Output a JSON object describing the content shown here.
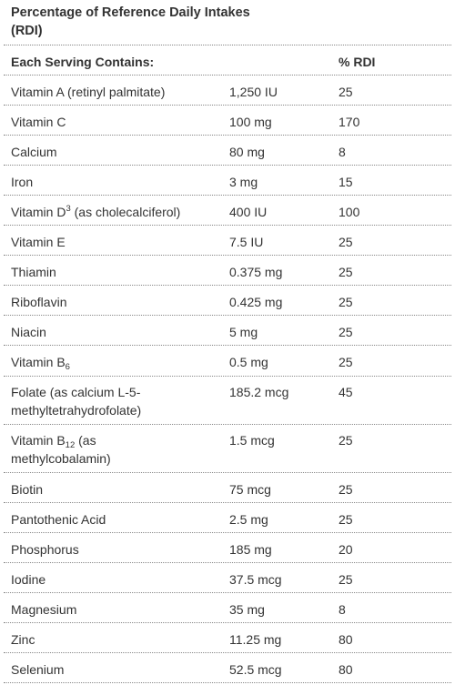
{
  "title": "Percentage of Reference Daily Intakes (RDI)",
  "header": {
    "nutrient": "Each Serving Contains:",
    "amount": "",
    "rdi": "% RDI"
  },
  "rows": [
    {
      "name": "Vitamin A (retinyl palmitate)",
      "amount": "1,250 IU",
      "rdi": "25"
    },
    {
      "name": "Vitamin C",
      "amount": "100 mg",
      "rdi": "170"
    },
    {
      "name": "Calcium",
      "amount": "80 mg",
      "rdi": "8"
    },
    {
      "name": "Iron",
      "amount": "3 mg",
      "rdi": "15"
    },
    {
      "name_pre": "Vitamin D",
      "name_sup": "3",
      "name_post": " (as cholecalciferol)",
      "amount": "400 IU",
      "rdi": "100"
    },
    {
      "name": "Vitamin E",
      "amount": "7.5 IU",
      "rdi": "25"
    },
    {
      "name": "Thiamin",
      "amount": "0.375 mg",
      "rdi": "25"
    },
    {
      "name": "Riboflavin",
      "amount": "0.425 mg",
      "rdi": "25"
    },
    {
      "name": "Niacin",
      "amount": "5 mg",
      "rdi": "25"
    },
    {
      "name_pre": "Vitamin B",
      "name_sub": "6",
      "name_post": "",
      "amount": "0.5 mg",
      "rdi": "25"
    },
    {
      "name_line1": "Folate (as calcium L-5-",
      "name_line2": "methyltetrahydrofolate)",
      "amount": "185.2 mcg",
      "rdi": "45"
    },
    {
      "name_pre": "Vitamin B",
      "name_sub": "12",
      "name_post": " (as",
      "name_line2": "methylcobalamin)",
      "amount": "1.5 mcg",
      "rdi": "25"
    },
    {
      "name": "Biotin",
      "amount": "75 mcg",
      "rdi": "25"
    },
    {
      "name": "Pantothenic Acid",
      "amount": "2.5 mg",
      "rdi": "25"
    },
    {
      "name": "Phosphorus",
      "amount": "185 mg",
      "rdi": "20"
    },
    {
      "name": "Iodine",
      "amount": "37.5 mcg",
      "rdi": "25"
    },
    {
      "name": "Magnesium",
      "amount": "35 mg",
      "rdi": "8"
    },
    {
      "name": "Zinc",
      "amount": "11.25 mg",
      "rdi": "80"
    },
    {
      "name": "Selenium",
      "amount": "52.5 mcg",
      "rdi": "80"
    }
  ]
}
